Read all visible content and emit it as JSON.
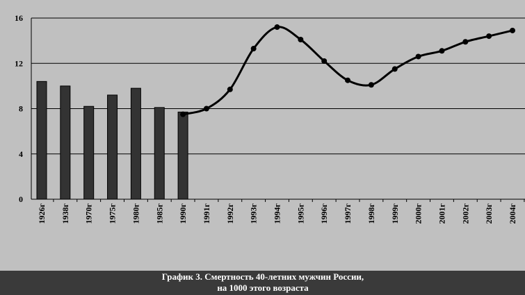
{
  "chart_data": {
    "type": "combo",
    "title_lines": [
      "График 3. Смертность 40-летних мужчин России,",
      "на 1000 этого возраста"
    ],
    "categories": [
      "1926г",
      "1938г",
      "1970г",
      "1975г",
      "1980г",
      "1985г",
      "1990г",
      "1991г",
      "1992г",
      "1993г",
      "1994г",
      "1995г",
      "1996г",
      "1997г",
      "1998г",
      "1999г",
      "2000г",
      "2001г",
      "2002г",
      "2003г",
      "2004г"
    ],
    "series": [
      {
        "type": "bar",
        "color": "#333333",
        "values": [
          10.4,
          10.0,
          8.2,
          9.2,
          9.8,
          8.1,
          7.7,
          null,
          null,
          null,
          null,
          null,
          null,
          null,
          null,
          null,
          null,
          null,
          null,
          null,
          null
        ]
      },
      {
        "type": "line",
        "color": "#000000",
        "values": [
          null,
          null,
          null,
          null,
          null,
          null,
          7.5,
          8.0,
          9.7,
          13.3,
          15.2,
          14.1,
          12.2,
          10.5,
          10.1,
          11.5,
          12.6,
          13.1,
          13.9,
          14.4,
          14.9
        ]
      }
    ],
    "ylim": [
      0,
      16
    ],
    "yticks": [
      0,
      4,
      8,
      12,
      16
    ],
    "grid": true
  }
}
